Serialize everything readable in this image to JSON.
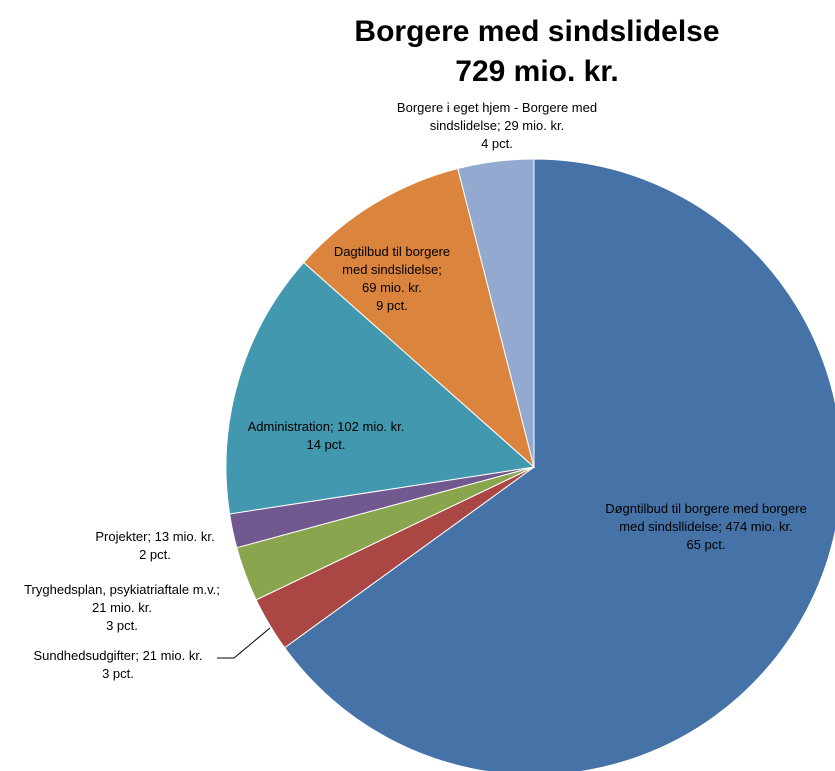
{
  "chart_data": {
    "type": "pie",
    "title": "Borgere med sindslidelse",
    "subtitle": "729 mio. kr.",
    "slices": [
      {
        "category": "Døgntilbud til borgere med borgere med sindsllidelse",
        "value": 474,
        "percent": 65,
        "color": "#4572A7",
        "label_lines": [
          "Døgntilbud til borgere med borgere",
          "med sindsllidelse;  474 mio. kr.",
          "65 pct."
        ]
      },
      {
        "category": "Sundhedsudgifter",
        "value": 21,
        "percent": 3,
        "color": "#AA4643",
        "label_lines": [
          "Sundhedsudgifter; 21 mio. kr.",
          "3 pct."
        ]
      },
      {
        "category": "Tryghedsplan, psykiatriaftale m.v.",
        "value": 21,
        "percent": 3,
        "color": "#89A54E",
        "label_lines": [
          "Tryghedsplan, psykiatriaftale m.v.;",
          "21 mio. kr.",
          "3 pct."
        ]
      },
      {
        "category": "Projekter",
        "value": 13,
        "percent": 2,
        "color": "#71588F",
        "label_lines": [
          "Projekter; 13 mio. kr.",
          "2 pct."
        ]
      },
      {
        "category": "Administration",
        "value": 102,
        "percent": 14,
        "color": "#4198AF",
        "label_lines": [
          "Administration; 102 mio. kr.",
          "14 pct."
        ]
      },
      {
        "category": "Dagtilbud til borgere med sindslidelse",
        "value": 69,
        "percent": 9,
        "color": "#DB843D",
        "label_lines": [
          "Dagtilbud til borgere",
          "med sindslidelse;",
          "69 mio. kr.",
          "9 pct."
        ]
      },
      {
        "category": "Borgere i eget hjem - Borgere med sindslidelse",
        "value": 29,
        "percent": 4,
        "color": "#93A9CF",
        "label_lines": [
          "Borgere i eget hjem - Borgere med",
          "sindslidelse;  29 mio. kr.",
          "4 pct."
        ]
      }
    ]
  }
}
